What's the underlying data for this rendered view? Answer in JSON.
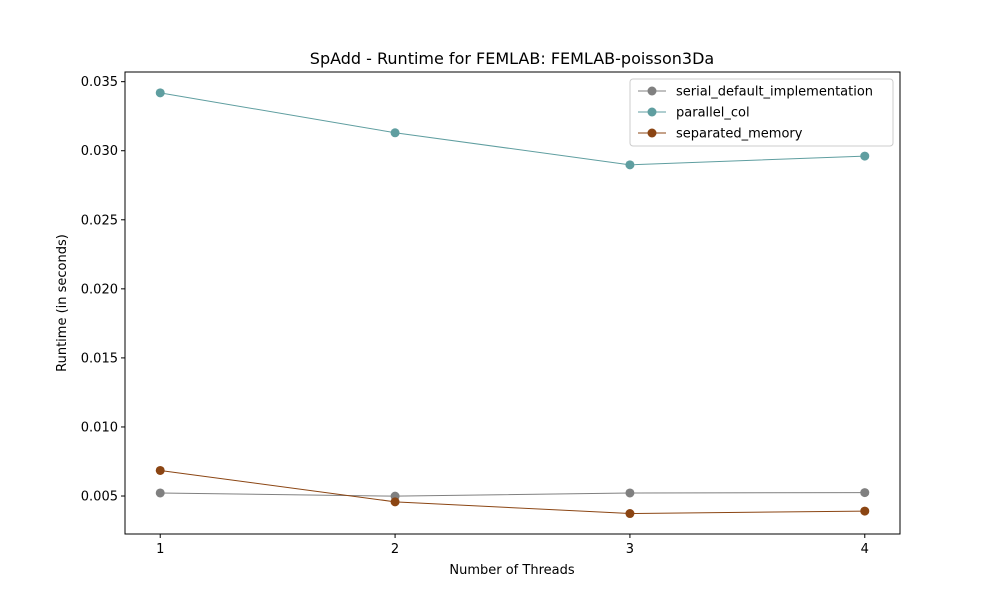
{
  "chart_data": {
    "type": "line",
    "title": "SpAdd - Runtime for FEMLAB: FEMLAB-poisson3Da",
    "xlabel": "Number of Threads",
    "ylabel": "Runtime (in seconds)",
    "x": [
      1,
      2,
      3,
      4
    ],
    "xticks": [
      "1",
      "2",
      "3",
      "4"
    ],
    "yticks": [
      "0.005",
      "0.010",
      "0.015",
      "0.020",
      "0.025",
      "0.030",
      "0.035"
    ],
    "ylim": [
      0.00225,
      0.0357
    ],
    "grid": false,
    "legend_position": "top-right",
    "series": [
      {
        "name": "serial_default_implementation",
        "color": "#808080",
        "values": [
          0.00522,
          0.00499,
          0.00522,
          0.00525
        ]
      },
      {
        "name": "parallel_col",
        "color": "#5f9ea0",
        "values": [
          0.03419,
          0.0313,
          0.02898,
          0.02961
        ]
      },
      {
        "name": "separated_memory",
        "color": "#8b4513",
        "values": [
          0.00685,
          0.00458,
          0.00373,
          0.00391
        ]
      }
    ]
  }
}
